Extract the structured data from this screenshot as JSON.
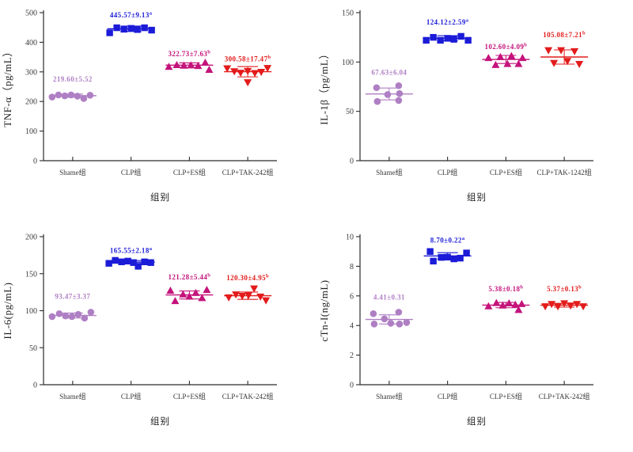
{
  "figure": {
    "x_axis_title": "组别",
    "colors": {
      "axis": "#2b2b2b",
      "tick_text": "#3a3a3a",
      "shame": "#AF7FC4",
      "clp": "#1B1BD8",
      "clp_es": "#C4137B",
      "clp_tak": "#E31B1B"
    }
  },
  "chart_data": [
    {
      "type": "scatter",
      "panel": "top-left",
      "ylabel": "TNF-α（pg/mL）",
      "xlabel": "组别",
      "ylim": [
        0,
        500
      ],
      "yticks": [
        0,
        100,
        200,
        300,
        400,
        500
      ],
      "groups": [
        {
          "label": "Shame组",
          "marker": "circle",
          "color": "#AF7FC4",
          "mean": 219.6,
          "sd": 5.52,
          "annotation": "219.60±5.52",
          "sup": "",
          "anno_value": 267,
          "points": [
            [
              -26,
              215
            ],
            [
              -18,
              222
            ],
            [
              -10,
              219
            ],
            [
              -2,
              222
            ],
            [
              6,
              218
            ],
            [
              14,
              210
            ],
            [
              22,
              221
            ]
          ]
        },
        {
          "label": "CLP组",
          "marker": "square",
          "color": "#1B1BD8",
          "mean": 445.57,
          "sd": 9.13,
          "annotation": "445.57±9.13",
          "sup": "a",
          "anno_value": 484,
          "points": [
            [
              -27,
              432
            ],
            [
              -18,
              449
            ],
            [
              -9,
              444
            ],
            [
              0,
              447
            ],
            [
              8,
              443
            ],
            [
              17,
              449
            ],
            [
              26,
              441
            ]
          ]
        },
        {
          "label": "CLP+ES组",
          "marker": "triangle-up",
          "color": "#C4137B",
          "mean": 322.73,
          "sd": 7.63,
          "annotation": "322.73±7.63",
          "sup": "b",
          "anno_value": 353,
          "points": [
            [
              -26,
              317
            ],
            [
              -16,
              323
            ],
            [
              -7,
              321
            ],
            [
              2,
              322
            ],
            [
              11,
              320
            ],
            [
              20,
              331
            ],
            [
              25,
              307
            ]
          ]
        },
        {
          "label": "CLP+TAK-242组",
          "marker": "triangle-down",
          "color": "#E31B1B",
          "mean": 300.58,
          "sd": 17.47,
          "annotation": "300.58±17.47",
          "sup": "b",
          "anno_value": 335,
          "points": [
            [
              -26,
              312
            ],
            [
              -17,
              302
            ],
            [
              -9,
              297
            ],
            [
              0,
              303
            ],
            [
              0,
              265
            ],
            [
              9,
              296
            ],
            [
              17,
              300
            ],
            [
              25,
              313
            ]
          ]
        }
      ]
    },
    {
      "type": "scatter",
      "panel": "top-right",
      "ylabel": "IL-1β（pg/mL）",
      "xlabel": "组别",
      "ylim": [
        0,
        150
      ],
      "yticks": [
        0,
        50,
        100,
        150
      ],
      "groups": [
        {
          "label": "Shame组",
          "marker": "circle",
          "color": "#AF7FC4",
          "mean": 67.63,
          "sd": 6.04,
          "annotation": "67.63±6.04",
          "sup": "",
          "anno_value": 87,
          "points": [
            [
              -16,
              74
            ],
            [
              -15,
              60
            ],
            [
              -2,
              67
            ],
            [
              12,
              76
            ],
            [
              13,
              68
            ],
            [
              12,
              61
            ]
          ]
        },
        {
          "label": "CLP组",
          "marker": "square",
          "color": "#1B1BD8",
          "mean": 124.12,
          "sd": 2.59,
          "annotation": "124.12±2.59",
          "sup": "a",
          "anno_value": 138,
          "points": [
            [
              -27,
              122
            ],
            [
              -18,
              125
            ],
            [
              -9,
              122
            ],
            [
              0,
              124
            ],
            [
              8,
              123
            ],
            [
              17,
              126
            ],
            [
              26,
              122
            ]
          ]
        },
        {
          "label": "CLP+ES组",
          "marker": "triangle-up",
          "color": "#C4137B",
          "mean": 102.6,
          "sd": 4.09,
          "annotation": "102.60±4.09",
          "sup": "b",
          "anno_value": 113,
          "points": [
            [
              -22,
              104
            ],
            [
              -13,
              97
            ],
            [
              -7,
              105
            ],
            [
              2,
              98
            ],
            [
              7,
              106
            ],
            [
              16,
              98
            ],
            [
              21,
              104
            ]
          ]
        },
        {
          "label": "CLP+TAK-1242组",
          "marker": "triangle-down",
          "color": "#E31B1B",
          "mean": 105.08,
          "sd": 7.21,
          "annotation": "105.08±7.21",
          "sup": "b",
          "anno_value": 125,
          "points": [
            [
              -20,
              112
            ],
            [
              -13,
              99
            ],
            [
              -4,
              112
            ],
            [
              4,
              101
            ],
            [
              13,
              111
            ],
            [
              19,
              98
            ]
          ]
        }
      ]
    },
    {
      "type": "scatter",
      "panel": "bottom-left",
      "ylabel": "IL-6(pg/mL)",
      "xlabel": "组别",
      "ylim": [
        0,
        200
      ],
      "yticks": [
        0,
        50,
        100,
        150,
        200
      ],
      "groups": [
        {
          "label": "Shame组",
          "marker": "circle",
          "color": "#AF7FC4",
          "mean": 93.47,
          "sd": 3.37,
          "annotation": "93.47±3.37",
          "sup": "",
          "anno_value": 116,
          "points": [
            [
              -26,
              92
            ],
            [
              -17,
              96
            ],
            [
              -9,
              93
            ],
            [
              -1,
              92
            ],
            [
              7,
              95
            ],
            [
              15,
              90
            ],
            [
              23,
              98
            ]
          ]
        },
        {
          "label": "CLP组",
          "marker": "square",
          "color": "#1B1BD8",
          "mean": 165.55,
          "sd": 2.18,
          "annotation": "165.55±2.18",
          "sup": "a",
          "anno_value": 178,
          "points": [
            [
              -28,
              164
            ],
            [
              -20,
              168
            ],
            [
              -12,
              166
            ],
            [
              -4,
              167
            ],
            [
              3,
              165
            ],
            [
              9,
              160
            ],
            [
              17,
              166
            ],
            [
              25,
              165
            ]
          ]
        },
        {
          "label": "CLP+ES组",
          "marker": "triangle-up",
          "color": "#C4137B",
          "mean": 121.28,
          "sd": 5.44,
          "annotation": "121.28±5.44",
          "sup": "b",
          "anno_value": 142,
          "points": [
            [
              -24,
              127
            ],
            [
              -18,
              113
            ],
            [
              -8,
              122
            ],
            [
              0,
              119
            ],
            [
              8,
              124
            ],
            [
              16,
              117
            ],
            [
              22,
              128
            ]
          ]
        },
        {
          "label": "CLP+TAK-242组",
          "marker": "triangle-down",
          "color": "#E31B1B",
          "mean": 120.3,
          "sd": 4.95,
          "annotation": "120.30±4.95",
          "sup": "b",
          "anno_value": 141,
          "points": [
            [
              -24,
              118
            ],
            [
              -15,
              122
            ],
            [
              -7,
              120
            ],
            [
              1,
              121
            ],
            [
              8,
              130
            ],
            [
              16,
              119
            ],
            [
              23,
              114
            ]
          ]
        }
      ]
    },
    {
      "type": "scatter",
      "panel": "bottom-right",
      "ylabel": "cTn-I(ng/mL)",
      "xlabel": "组别",
      "ylim": [
        0,
        10
      ],
      "yticks": [
        0,
        2,
        4,
        6,
        8,
        10
      ],
      "groups": [
        {
          "label": "Shame组",
          "marker": "circle",
          "color": "#AF7FC4",
          "mean": 4.41,
          "sd": 0.31,
          "annotation": "4.41±0.31",
          "sup": "",
          "anno_value": 5.74,
          "points": [
            [
              -20,
              4.8
            ],
            [
              -19,
              4.1
            ],
            [
              -6,
              4.45
            ],
            [
              2,
              4.15
            ],
            [
              12,
              4.9
            ],
            [
              13,
              4.1
            ],
            [
              22,
              4.2
            ]
          ]
        },
        {
          "label": "CLP组",
          "marker": "square",
          "color": "#1B1BD8",
          "mean": 8.7,
          "sd": 0.22,
          "annotation": "8.70±0.22",
          "sup": "a",
          "anno_value": 9.6,
          "points": [
            [
              -22,
              9.0
            ],
            [
              -18,
              8.35
            ],
            [
              -8,
              8.6
            ],
            [
              0,
              8.62
            ],
            [
              8,
              8.5
            ],
            [
              16,
              8.55
            ],
            [
              24,
              8.9
            ]
          ]
        },
        {
          "label": "CLP+ES组",
          "marker": "triangle-up",
          "color": "#C4137B",
          "mean": 5.38,
          "sd": 0.18,
          "annotation": "5.38±0.18",
          "sup": "b",
          "anno_value": 6.3,
          "points": [
            [
              -22,
              5.3
            ],
            [
              -12,
              5.52
            ],
            [
              -4,
              5.35
            ],
            [
              4,
              5.5
            ],
            [
              16,
              5.05
            ],
            [
              12,
              5.4
            ],
            [
              20,
              5.45
            ]
          ]
        },
        {
          "label": "CLP+TAK-242组",
          "marker": "triangle-down",
          "color": "#E31B1B",
          "mean": 5.37,
          "sd": 0.13,
          "annotation": "5.37±0.13",
          "sup": "b",
          "anno_value": 6.3,
          "points": [
            [
              -24,
              5.3
            ],
            [
              -16,
              5.45
            ],
            [
              -8,
              5.3
            ],
            [
              0,
              5.5
            ],
            [
              8,
              5.35
            ],
            [
              16,
              5.45
            ],
            [
              24,
              5.3
            ]
          ]
        }
      ]
    }
  ]
}
